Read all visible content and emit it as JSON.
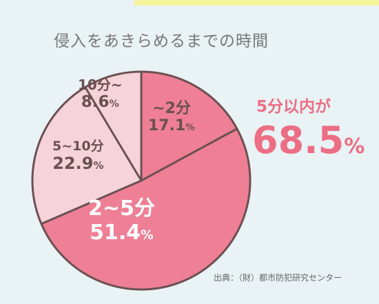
{
  "chart_data": {
    "type": "pie",
    "title": "侵入をあきらめるまでの時間",
    "slices": [
      {
        "label": "~2分",
        "value": 17.1,
        "value_text": "17.1",
        "color": "#ee7f95",
        "text_color": "#6b5052"
      },
      {
        "label": "2~5分",
        "value": 51.4,
        "value_text": "51.4",
        "color": "#ee7f95",
        "text_color": "#ffffff"
      },
      {
        "label": "5~10分",
        "value": 22.9,
        "value_text": "22.9",
        "color": "#f6d3da",
        "text_color": "#6b5052"
      },
      {
        "label": "10分~",
        "value": 8.6,
        "value_text": "8.6",
        "color": "#f6d3da",
        "text_color": "#6b5052"
      }
    ],
    "percent_sign": "%",
    "border_color": "#6b5052",
    "start_angle_deg": 0,
    "direction": "clockwise"
  },
  "callout": {
    "label": "5分以内が",
    "value_text": "68.5",
    "percent_sign": "%",
    "color": "#ec6e84"
  },
  "source": "出典：（財）都市防犯研究センター"
}
